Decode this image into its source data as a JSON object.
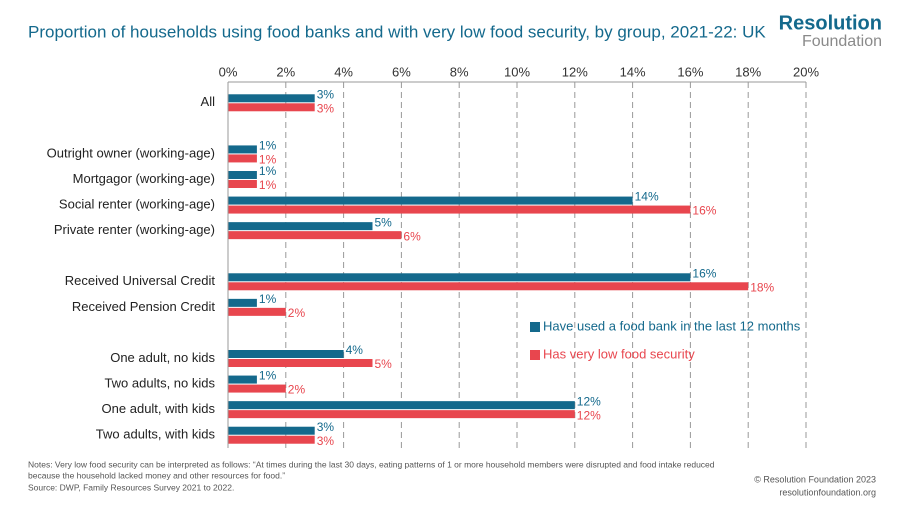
{
  "chart_data": {
    "type": "barh",
    "title": "Proportion of households using food banks and with very low food security, by group, 2021-22: UK",
    "brand": [
      "Resolution",
      "Foundation"
    ],
    "categories": [
      "All",
      null,
      "Outright owner (working-age)",
      "Mortgagor (working-age)",
      "Social renter (working-age)",
      "Private renter (working-age)",
      null,
      "Received Universal Credit",
      "Received Pension Credit",
      null,
      "One adult, no kids",
      "Two adults, no kids",
      "One adult, with kids",
      "Two adults, with kids"
    ],
    "series": [
      {
        "name": "Have used a food bank in the last 12 months",
        "color": "#14698c",
        "values": [
          3,
          null,
          1,
          1,
          14,
          5,
          null,
          16,
          1,
          null,
          4,
          1,
          12,
          3
        ],
        "value_labels": [
          "3%",
          null,
          "1%",
          "1%",
          "14%",
          "5%",
          null,
          "16%",
          "1%",
          null,
          "4%",
          "1%",
          "12%",
          "3%"
        ]
      },
      {
        "name": "Has very low food security",
        "color": "#e8464e",
        "values": [
          3,
          null,
          1,
          1,
          16,
          6,
          null,
          18,
          2,
          null,
          5,
          2,
          12,
          3
        ],
        "value_labels": [
          "3%",
          null,
          "1%",
          "1%",
          "16%",
          "6%",
          null,
          "18%",
          "2%",
          null,
          "5%",
          "2%",
          "12%",
          "3%"
        ]
      }
    ],
    "xlim": [
      0,
      20
    ],
    "xticks": [
      {
        "value": 0,
        "label": "0%"
      },
      {
        "value": 2,
        "label": "2%"
      },
      {
        "value": 4,
        "label": "4%"
      },
      {
        "value": 6,
        "label": "6%"
      },
      {
        "value": 8,
        "label": "8%"
      },
      {
        "value": 10,
        "label": "10%"
      },
      {
        "value": 12,
        "label": "12%"
      },
      {
        "value": 14,
        "label": "14%"
      },
      {
        "value": 16,
        "label": "16%"
      },
      {
        "value": 18,
        "label": "18%"
      },
      {
        "value": 20,
        "label": "20%"
      }
    ],
    "grid": true,
    "notes": [
      "Notes: Very low food security can be interpreted as follows: “At times during the last 30 days, eating patterns of 1 or more household members were disrupted and food intake reduced",
      "because the household lacked money and other resources for food.”",
      "Source: DWP, Family Resources Survey 2021 to 2022."
    ],
    "credits": [
      "© Resolution Foundation 2023",
      "resolutionfoundation.org"
    ]
  }
}
